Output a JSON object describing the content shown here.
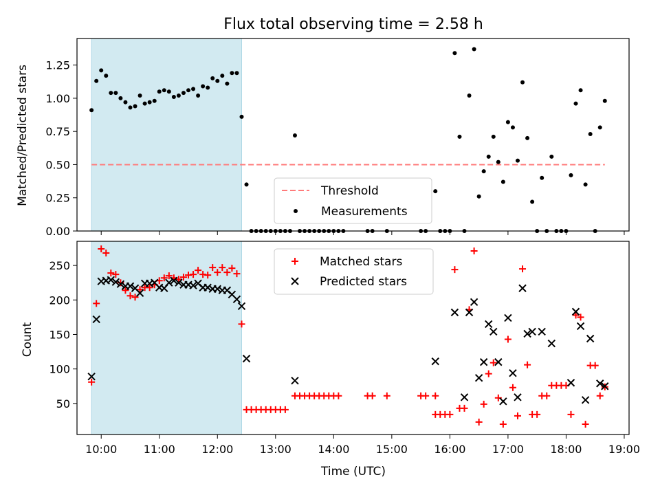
{
  "chart_data": [
    {
      "type": "scatter",
      "title": "Flux total observing time = 2.58 h",
      "xlabel": "",
      "ylabel": "Matched/Predicted stars",
      "xlim": [
        "09:35",
        "19:05"
      ],
      "ylim": [
        0,
        1.45
      ],
      "yticks": [
        "0.00",
        "0.25",
        "0.50",
        "0.75",
        "1.00",
        "1.25"
      ],
      "highlight": {
        "x_start": "09:50",
        "x_end": "12:25",
        "color": "#add8e6"
      },
      "threshold": {
        "name": "Threshold",
        "value": 0.5,
        "x_start": "09:50",
        "x_end": "18:40",
        "color": "#ff7a7a"
      },
      "legend": {
        "position": "lower center",
        "entries": [
          "Threshold",
          "Measurements"
        ]
      },
      "series": [
        {
          "name": "Measurements",
          "color": "#000000",
          "points": [
            [
              "09:50",
              0.91
            ],
            [
              "09:55",
              1.13
            ],
            [
              "10:00",
              1.21
            ],
            [
              "10:05",
              1.17
            ],
            [
              "10:10",
              1.04
            ],
            [
              "10:15",
              1.04
            ],
            [
              "10:20",
              1.0
            ],
            [
              "10:25",
              0.97
            ],
            [
              "10:30",
              0.93
            ],
            [
              "10:35",
              0.94
            ],
            [
              "10:40",
              1.02
            ],
            [
              "10:45",
              0.96
            ],
            [
              "10:50",
              0.97
            ],
            [
              "10:55",
              0.98
            ],
            [
              "11:00",
              1.05
            ],
            [
              "11:05",
              1.06
            ],
            [
              "11:10",
              1.05
            ],
            [
              "11:15",
              1.01
            ],
            [
              "11:20",
              1.02
            ],
            [
              "11:25",
              1.04
            ],
            [
              "11:30",
              1.06
            ],
            [
              "11:35",
              1.07
            ],
            [
              "11:40",
              1.02
            ],
            [
              "11:45",
              1.09
            ],
            [
              "11:50",
              1.08
            ],
            [
              "11:55",
              1.15
            ],
            [
              "12:00",
              1.13
            ],
            [
              "12:05",
              1.17
            ],
            [
              "12:10",
              1.11
            ],
            [
              "12:15",
              1.19
            ],
            [
              "12:20",
              1.19
            ],
            [
              "12:25",
              0.86
            ],
            [
              "12:30",
              0.35
            ],
            [
              "12:35",
              0
            ],
            [
              "12:40",
              0
            ],
            [
              "12:45",
              0
            ],
            [
              "12:50",
              0
            ],
            [
              "12:55",
              0
            ],
            [
              "13:00",
              0
            ],
            [
              "13:05",
              0
            ],
            [
              "13:10",
              0
            ],
            [
              "13:15",
              0
            ],
            [
              "13:20",
              0.72
            ],
            [
              "13:25",
              0
            ],
            [
              "13:30",
              0
            ],
            [
              "13:35",
              0
            ],
            [
              "13:40",
              0
            ],
            [
              "13:45",
              0
            ],
            [
              "13:50",
              0
            ],
            [
              "13:55",
              0
            ],
            [
              "14:00",
              0
            ],
            [
              "14:05",
              0
            ],
            [
              "14:10",
              0
            ],
            [
              "14:35",
              0
            ],
            [
              "14:40",
              0
            ],
            [
              "14:55",
              0
            ],
            [
              "15:30",
              0
            ],
            [
              "15:35",
              0
            ],
            [
              "15:45",
              0.3
            ],
            [
              "15:50",
              0
            ],
            [
              "15:55",
              0
            ],
            [
              "16:00",
              0
            ],
            [
              "16:05",
              1.34
            ],
            [
              "16:10",
              0.71
            ],
            [
              "16:15",
              0
            ],
            [
              "16:20",
              1.02
            ],
            [
              "16:25",
              1.37
            ],
            [
              "16:30",
              0.26
            ],
            [
              "16:35",
              0.45
            ],
            [
              "16:40",
              0.56
            ],
            [
              "16:45",
              0.71
            ],
            [
              "16:50",
              0.52
            ],
            [
              "16:55",
              0.37
            ],
            [
              "17:00",
              0.82
            ],
            [
              "17:05",
              0.78
            ],
            [
              "17:10",
              0.53
            ],
            [
              "17:15",
              1.12
            ],
            [
              "17:20",
              0.7
            ],
            [
              "17:25",
              0.22
            ],
            [
              "17:30",
              0
            ],
            [
              "17:35",
              0.4
            ],
            [
              "17:40",
              0
            ],
            [
              "17:45",
              0.56
            ],
            [
              "17:50",
              0
            ],
            [
              "17:55",
              0
            ],
            [
              "18:00",
              0
            ],
            [
              "18:05",
              0.42
            ],
            [
              "18:10",
              0.96
            ],
            [
              "18:15",
              1.06
            ],
            [
              "18:20",
              0.35
            ],
            [
              "18:25",
              0.73
            ],
            [
              "18:30",
              0
            ],
            [
              "18:35",
              0.78
            ],
            [
              "18:40",
              0.98
            ]
          ]
        }
      ]
    },
    {
      "type": "scatter",
      "title": "",
      "xlabel": "Time (UTC)",
      "ylabel": "Count",
      "xlim": [
        "09:35",
        "19:05"
      ],
      "ylim": [
        5,
        285
      ],
      "xticks": [
        "10:00",
        "11:00",
        "12:00",
        "13:00",
        "14:00",
        "15:00",
        "16:00",
        "17:00",
        "18:00",
        "19:00"
      ],
      "yticks": [
        "50",
        "100",
        "150",
        "200",
        "250"
      ],
      "highlight": {
        "x_start": "09:50",
        "x_end": "12:25",
        "color": "#add8e6"
      },
      "legend": {
        "position": "top center",
        "entries": [
          "Matched stars",
          "Predicted stars"
        ]
      },
      "series": [
        {
          "name": "Matched stars",
          "marker": "plus",
          "color": "#ff0000",
          "points": [
            [
              "09:50",
              81
            ],
            [
              "09:55",
              195
            ],
            [
              "10:00",
              274
            ],
            [
              "10:05",
              268
            ],
            [
              "10:10",
              239
            ],
            [
              "10:15",
              237
            ],
            [
              "10:20",
              225
            ],
            [
              "10:25",
              214
            ],
            [
              "10:30",
              206
            ],
            [
              "10:35",
              204
            ],
            [
              "10:40",
              215
            ],
            [
              "10:45",
              218
            ],
            [
              "10:50",
              218
            ],
            [
              "10:55",
              222
            ],
            [
              "11:00",
              228
            ],
            [
              "11:05",
              232
            ],
            [
              "11:10",
              235
            ],
            [
              "11:15",
              232
            ],
            [
              "11:20",
              230
            ],
            [
              "11:25",
              233
            ],
            [
              "11:30",
              236
            ],
            [
              "11:35",
              237
            ],
            [
              "11:40",
              243
            ],
            [
              "11:45",
              237
            ],
            [
              "11:50",
              236
            ],
            [
              "11:55",
              247
            ],
            [
              "12:00",
              240
            ],
            [
              "12:05",
              247
            ],
            [
              "12:10",
              240
            ],
            [
              "12:15",
              246
            ],
            [
              "12:20",
              238
            ],
            [
              "12:25",
              165
            ],
            [
              "12:30",
              41
            ],
            [
              "12:35",
              41
            ],
            [
              "12:40",
              41
            ],
            [
              "12:45",
              41
            ],
            [
              "12:50",
              41
            ],
            [
              "12:55",
              41
            ],
            [
              "13:00",
              41
            ],
            [
              "13:05",
              41
            ],
            [
              "13:10",
              41
            ],
            [
              "13:20",
              61
            ],
            [
              "13:25",
              61
            ],
            [
              "13:30",
              61
            ],
            [
              "13:35",
              61
            ],
            [
              "13:40",
              61
            ],
            [
              "13:45",
              61
            ],
            [
              "13:50",
              61
            ],
            [
              "13:55",
              61
            ],
            [
              "14:00",
              61
            ],
            [
              "14:05",
              61
            ],
            [
              "14:35",
              61
            ],
            [
              "14:40",
              61
            ],
            [
              "14:55",
              61
            ],
            [
              "15:30",
              61
            ],
            [
              "15:35",
              61
            ],
            [
              "15:45",
              61
            ],
            [
              "15:45",
              34
            ],
            [
              "15:50",
              34
            ],
            [
              "15:55",
              34
            ],
            [
              "16:00",
              34
            ],
            [
              "16:05",
              244
            ],
            [
              "16:10",
              43
            ],
            [
              "16:15",
              43
            ],
            [
              "16:20",
              186
            ],
            [
              "16:25",
              271
            ],
            [
              "16:30",
              23
            ],
            [
              "16:35",
              49
            ],
            [
              "16:40",
              93
            ],
            [
              "16:45",
              109
            ],
            [
              "16:50",
              58
            ],
            [
              "16:55",
              20
            ],
            [
              "17:00",
              143
            ],
            [
              "17:05",
              73
            ],
            [
              "17:10",
              32
            ],
            [
              "17:15",
              245
            ],
            [
              "17:20",
              106
            ],
            [
              "17:25",
              34
            ],
            [
              "17:30",
              34
            ],
            [
              "17:35",
              61
            ],
            [
              "17:40",
              61
            ],
            [
              "17:45",
              76
            ],
            [
              "17:50",
              76
            ],
            [
              "17:55",
              76
            ],
            [
              "18:00",
              76
            ],
            [
              "18:05",
              34
            ],
            [
              "18:10",
              178
            ],
            [
              "18:15",
              175
            ],
            [
              "18:20",
              20
            ],
            [
              "18:25",
              105
            ],
            [
              "18:30",
              105
            ],
            [
              "18:35",
              61
            ],
            [
              "18:40",
              74
            ]
          ]
        },
        {
          "name": "Predicted stars",
          "marker": "x",
          "color": "#000000",
          "points": [
            [
              "09:50",
              89
            ],
            [
              "09:55",
              172
            ],
            [
              "10:00",
              227
            ],
            [
              "10:05",
              228
            ],
            [
              "10:10",
              229
            ],
            [
              "10:15",
              226
            ],
            [
              "10:20",
              223
            ],
            [
              "10:25",
              220
            ],
            [
              "10:30",
              220
            ],
            [
              "10:35",
              217
            ],
            [
              "10:40",
              210
            ],
            [
              "10:45",
              224
            ],
            [
              "10:50",
              224
            ],
            [
              "10:55",
              225
            ],
            [
              "11:00",
              218
            ],
            [
              "11:05",
              217
            ],
            [
              "11:10",
              225
            ],
            [
              "11:15",
              228
            ],
            [
              "11:20",
              225
            ],
            [
              "11:25",
              222
            ],
            [
              "11:30",
              222
            ],
            [
              "11:35",
              221
            ],
            [
              "11:40",
              224
            ],
            [
              "11:45",
              218
            ],
            [
              "11:50",
              218
            ],
            [
              "11:55",
              216
            ],
            [
              "12:00",
              216
            ],
            [
              "12:05",
              214
            ],
            [
              "12:10",
              214
            ],
            [
              "12:15",
              208
            ],
            [
              "12:20",
              201
            ],
            [
              "12:25",
              191
            ],
            [
              "12:30",
              115
            ],
            [
              "13:20",
              83
            ],
            [
              "15:45",
              111
            ],
            [
              "16:05",
              182
            ],
            [
              "16:15",
              59
            ],
            [
              "16:20",
              182
            ],
            [
              "16:25",
              197
            ],
            [
              "16:30",
              87
            ],
            [
              "16:35",
              110
            ],
            [
              "16:40",
              165
            ],
            [
              "16:45",
              154
            ],
            [
              "16:50",
              110
            ],
            [
              "16:55",
              53
            ],
            [
              "17:00",
              174
            ],
            [
              "17:05",
              94
            ],
            [
              "17:10",
              59
            ],
            [
              "17:15",
              217
            ],
            [
              "17:20",
              151
            ],
            [
              "17:25",
              154
            ],
            [
              "17:35",
              154
            ],
            [
              "17:45",
              137
            ],
            [
              "18:05",
              80
            ],
            [
              "18:10",
              183
            ],
            [
              "18:15",
              162
            ],
            [
              "18:20",
              55
            ],
            [
              "18:25",
              144
            ],
            [
              "18:35",
              79
            ],
            [
              "18:40",
              75
            ]
          ]
        }
      ]
    }
  ]
}
